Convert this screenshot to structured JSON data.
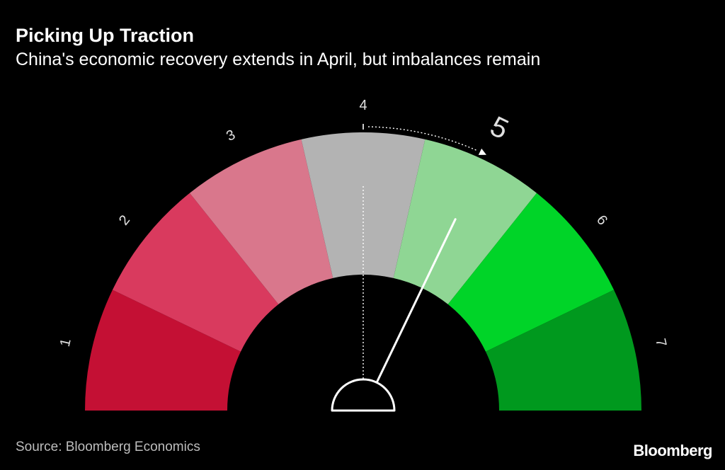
{
  "header": {
    "title": "Picking Up Traction",
    "subtitle": "China's economic recovery extends in April, but imbalances remain"
  },
  "footer": {
    "source": "Source: Bloomberg Economics",
    "brand": "Bloomberg"
  },
  "chart_data": {
    "type": "gauge",
    "title": "Picking Up Traction",
    "subtitle": "China's economic recovery extends in April, but imbalances remain",
    "scale_min": 0.5,
    "scale_max": 7.5,
    "segments": [
      {
        "label": "1",
        "color": "#c41034"
      },
      {
        "label": "2",
        "color": "#d93a5e"
      },
      {
        "label": "3",
        "color": "#d9778c"
      },
      {
        "label": "4",
        "color": "#b3b3b3"
      },
      {
        "label": "5",
        "color": "#8fd694"
      },
      {
        "label": "6",
        "color": "#00d428"
      },
      {
        "label": "7",
        "color": "#00991e"
      }
    ],
    "previous_value": 4,
    "current_value": 5,
    "current_label": "5"
  }
}
